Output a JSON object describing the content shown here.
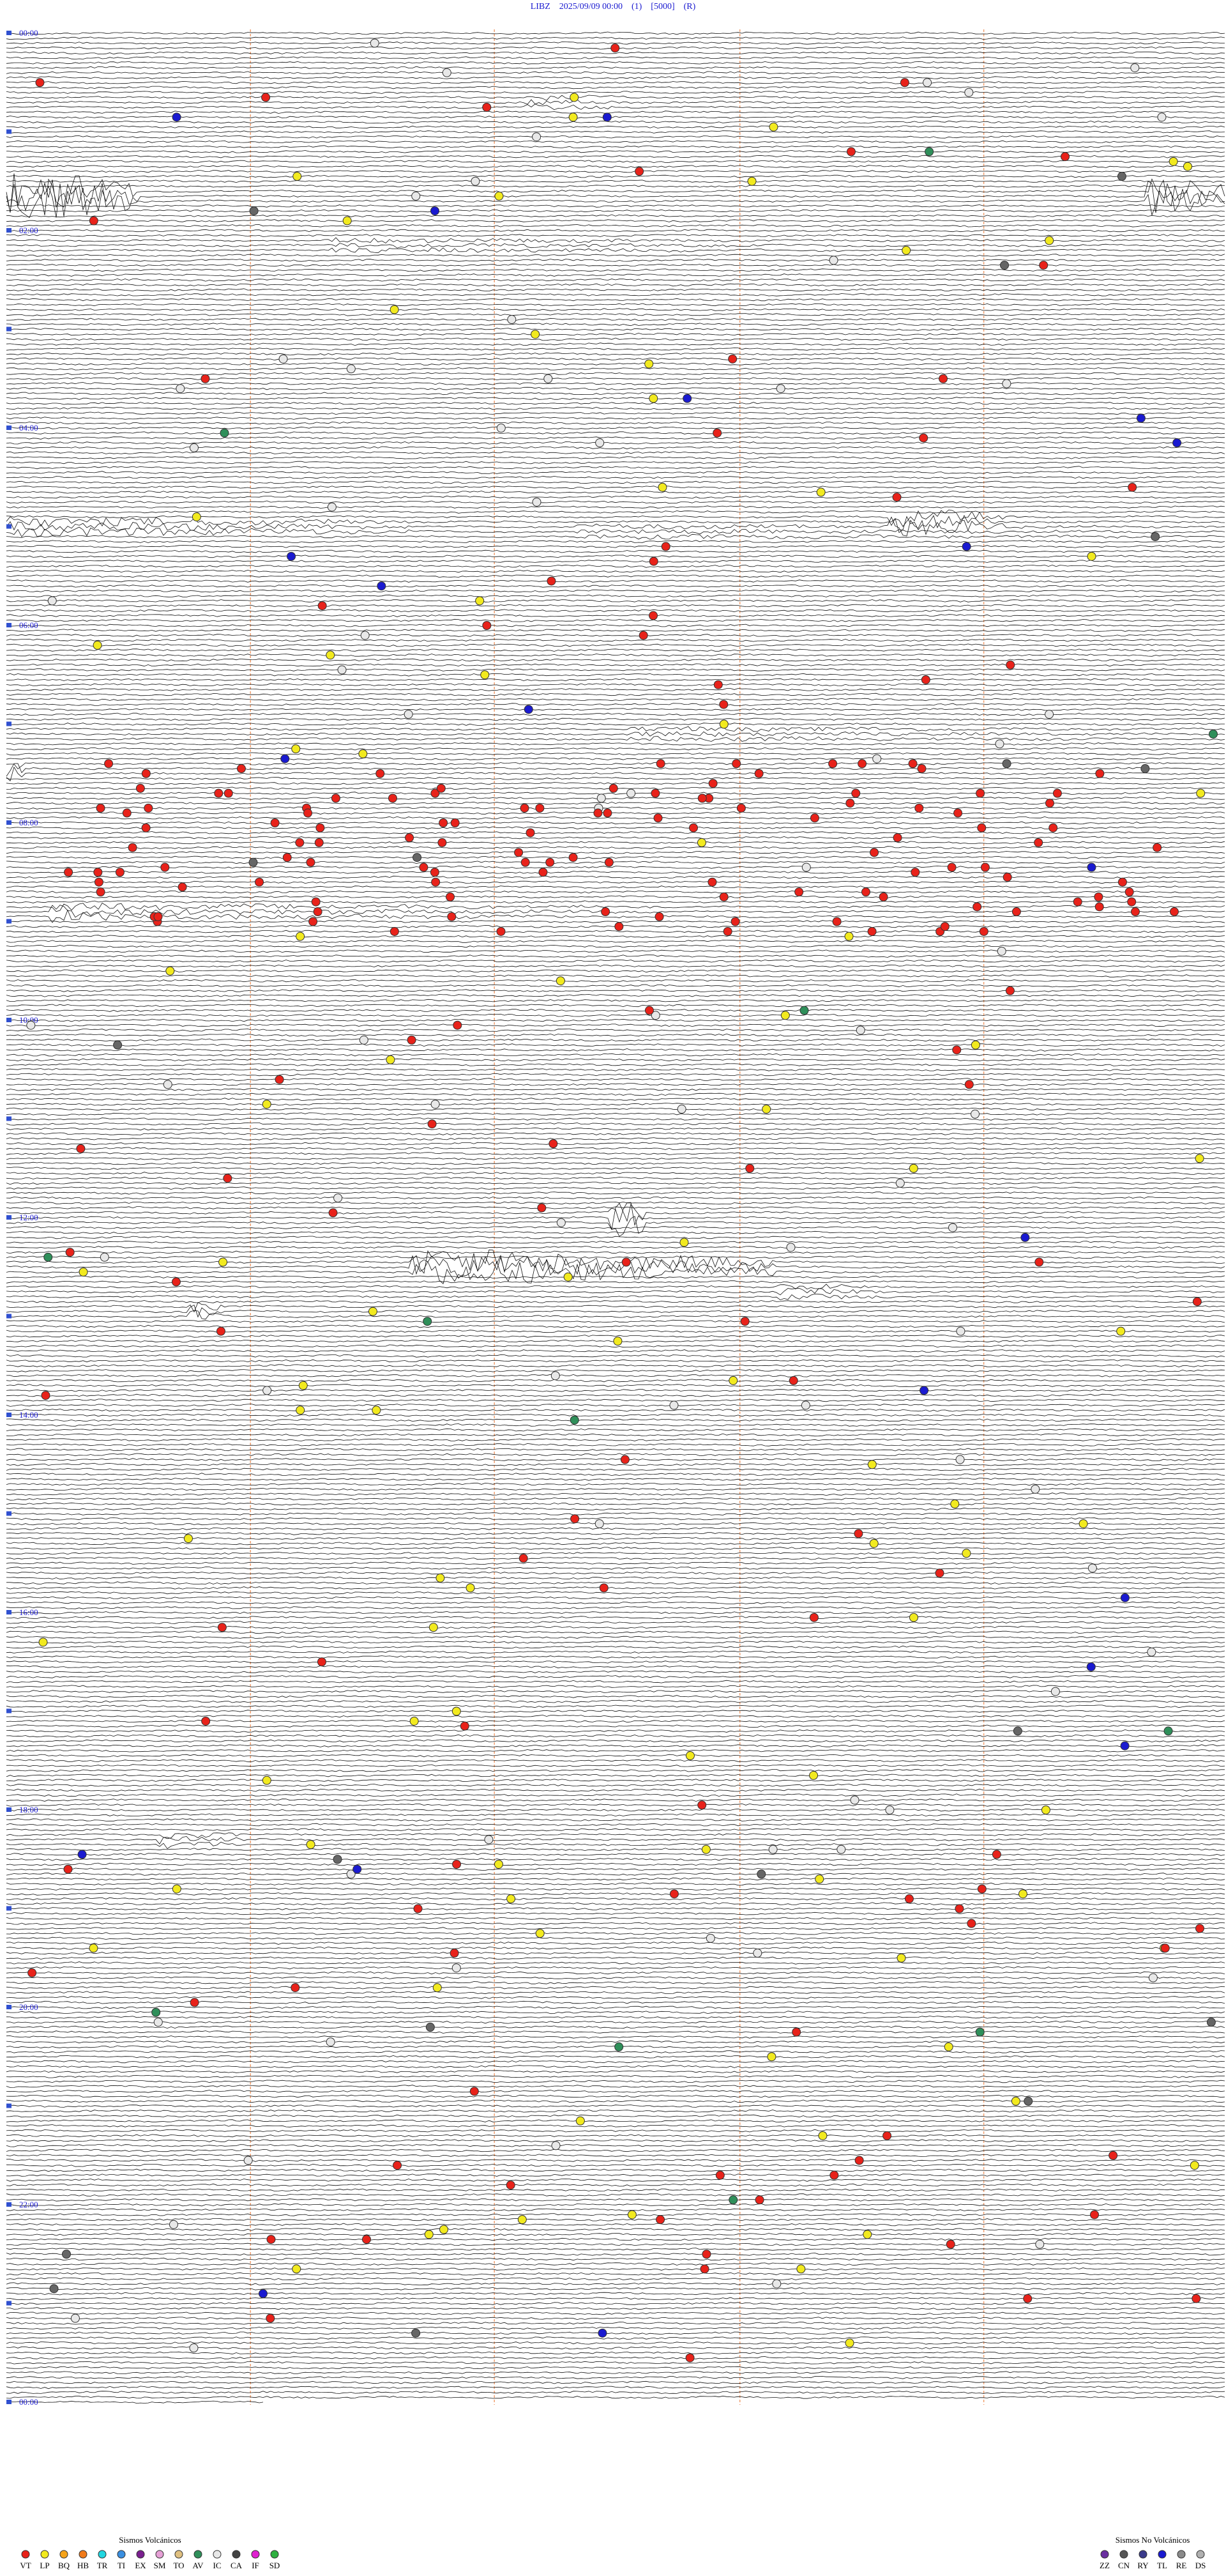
{
  "header": {
    "title": "LIBZ    2025/09/09 00:00    (1)    [5000]    (R)"
  },
  "time_labels": [
    "00:00",
    "02:00",
    "04:00",
    "06:00",
    "08:00",
    "10:00",
    "12:00",
    "14:00",
    "16:00",
    "18:00",
    "20:00",
    "22:00",
    "00:00"
  ],
  "legend_volcanic": {
    "title": "Sismos Volcánicos",
    "items": [
      {
        "label": "VT",
        "color": "#e8221a"
      },
      {
        "label": "LP",
        "color": "#f2ea1f"
      },
      {
        "label": "BQ",
        "color": "#f5a31a"
      },
      {
        "label": "HB",
        "color": "#f07a1a"
      },
      {
        "label": "TR",
        "color": "#22d6e0"
      },
      {
        "label": "TI",
        "color": "#3a8fe0"
      },
      {
        "label": "EX",
        "color": "#7a1f8f"
      },
      {
        "label": "SM",
        "color": "#e6a0d6"
      },
      {
        "label": "TO",
        "color": "#e0c080"
      },
      {
        "label": "AV",
        "color": "#2f8f5a"
      },
      {
        "label": "IC",
        "color": "#e8e8e8"
      },
      {
        "label": "CA",
        "color": "#444444"
      },
      {
        "label": "IF",
        "color": "#e020d0"
      },
      {
        "label": "SD",
        "color": "#2fb040"
      }
    ]
  },
  "legend_non_volcanic": {
    "title": "Sismos No Volcánicos",
    "items": [
      {
        "label": "ZZ",
        "color": "#6a2fa0"
      },
      {
        "label": "CN",
        "color": "#555555"
      },
      {
        "label": "RY",
        "color": "#3a3a8a"
      },
      {
        "label": "TL",
        "color": "#1a1ad0"
      },
      {
        "label": "RE",
        "color": "#8a8a8a"
      },
      {
        "label": "DS",
        "color": "#b0b0b0"
      }
    ]
  }
}
